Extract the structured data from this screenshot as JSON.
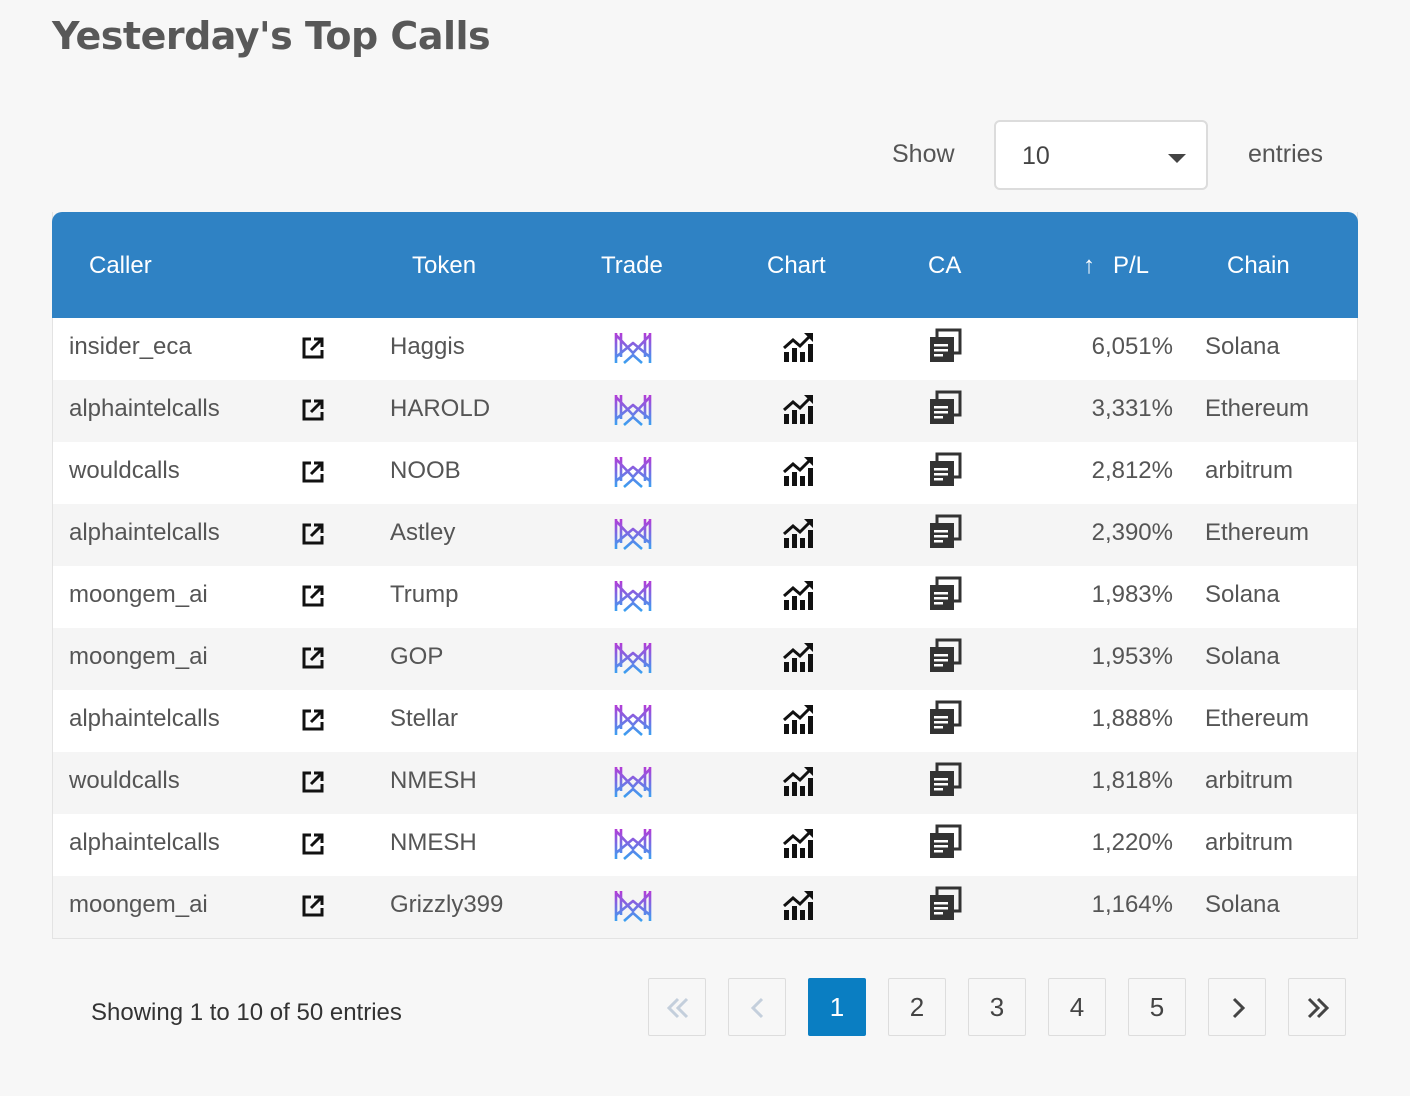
{
  "title": "Yesterday's Top Calls",
  "length": {
    "show_label": "Show",
    "selected": "10",
    "entries_label": "entries"
  },
  "table": {
    "headers": {
      "caller": "Caller",
      "token": "Token",
      "trade": "Trade",
      "chart": "Chart",
      "ca": "CA",
      "pl": "P/L",
      "chain": "Chain",
      "sort_arrow": "↑"
    },
    "rows": [
      {
        "caller": "insider_eca",
        "token": "Haggis",
        "pl": "6,051%",
        "chain": "Solana"
      },
      {
        "caller": "alphaintelcalls",
        "token": "HAROLD",
        "pl": "3,331%",
        "chain": "Ethereum"
      },
      {
        "caller": "wouldcalls",
        "token": "NOOB",
        "pl": "2,812%",
        "chain": "arbitrum"
      },
      {
        "caller": "alphaintelcalls",
        "token": "Astley",
        "pl": "2,390%",
        "chain": "Ethereum"
      },
      {
        "caller": "moongem_ai",
        "token": "Trump",
        "pl": "1,983%",
        "chain": "Solana"
      },
      {
        "caller": "moongem_ai",
        "token": "GOP",
        "pl": "1,953%",
        "chain": "Solana"
      },
      {
        "caller": "alphaintelcalls",
        "token": "Stellar",
        "pl": "1,888%",
        "chain": "Ethereum"
      },
      {
        "caller": "wouldcalls",
        "token": "NMESH",
        "pl": "1,818%",
        "chain": "arbitrum"
      },
      {
        "caller": "alphaintelcalls",
        "token": "NMESH",
        "pl": "1,220%",
        "chain": "arbitrum"
      },
      {
        "caller": "moongem_ai",
        "token": "Grizzly399",
        "pl": "1,164%",
        "chain": "Solana"
      }
    ]
  },
  "info": "Showing 1 to 10 of 50 entries",
  "pagination": {
    "pages": [
      "1",
      "2",
      "3",
      "4",
      "5"
    ],
    "active": "1"
  },
  "icons": {
    "link": "external-link-icon",
    "trade": "trade-logo-icon",
    "chart": "chart-icon",
    "ca": "copy-icon",
    "first": "double-chevron-left-icon",
    "prev": "chevron-left-icon",
    "next": "chevron-right-icon",
    "last": "double-chevron-right-icon"
  },
  "colors": {
    "header_bg": "#2f82c4",
    "active_page": "#0a7ec2"
  }
}
